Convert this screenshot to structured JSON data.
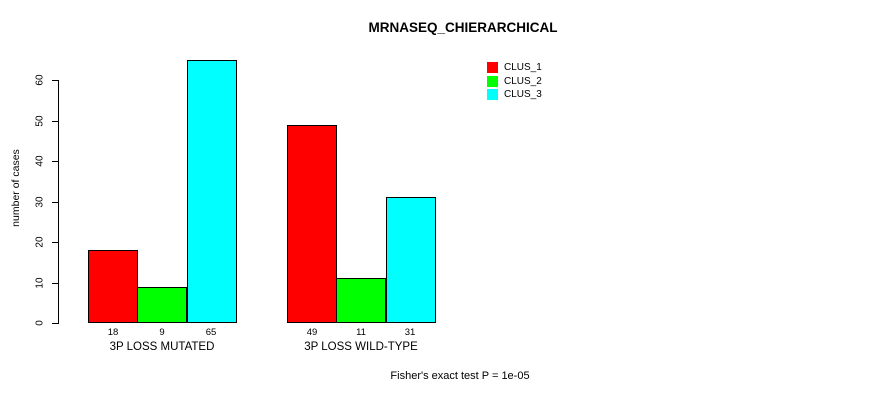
{
  "title": "MRNASEQ_CHIERARCHICAL",
  "y_axis": {
    "label": "number of cases",
    "ticks": [
      0,
      10,
      20,
      30,
      40,
      50,
      60
    ],
    "range": [
      0,
      60
    ]
  },
  "footer": "Fisher's exact test P = 1e-05",
  "legend": {
    "position": "top-right",
    "entries": [
      {
        "label": "CLUS_1",
        "color": "#ff0000"
      },
      {
        "label": "CLUS_2",
        "color": "#00ff00"
      },
      {
        "label": "CLUS_3",
        "color": "#00ffff"
      }
    ]
  },
  "chart_data": {
    "type": "bar",
    "title": "MRNASEQ_CHIERARCHICAL",
    "categories": [
      "3P LOSS MUTATED",
      "3P LOSS WILD-TYPE"
    ],
    "series": [
      {
        "name": "CLUS_1",
        "color": "#ff0000",
        "values": [
          18,
          49
        ]
      },
      {
        "name": "CLUS_2",
        "color": "#00ff00",
        "values": [
          9,
          11
        ]
      },
      {
        "name": "CLUS_3",
        "color": "#00ffff",
        "values": [
          65,
          31
        ]
      }
    ],
    "xlabel": "",
    "ylabel": "number of cases",
    "ylim": [
      0,
      65
    ],
    "yticks": [
      0,
      10,
      20,
      30,
      40,
      50,
      60
    ],
    "grid": false,
    "legend_position": "top-right",
    "bar_value_labels_shown": true,
    "annotation": "Fisher's exact test P = 1e-05"
  }
}
